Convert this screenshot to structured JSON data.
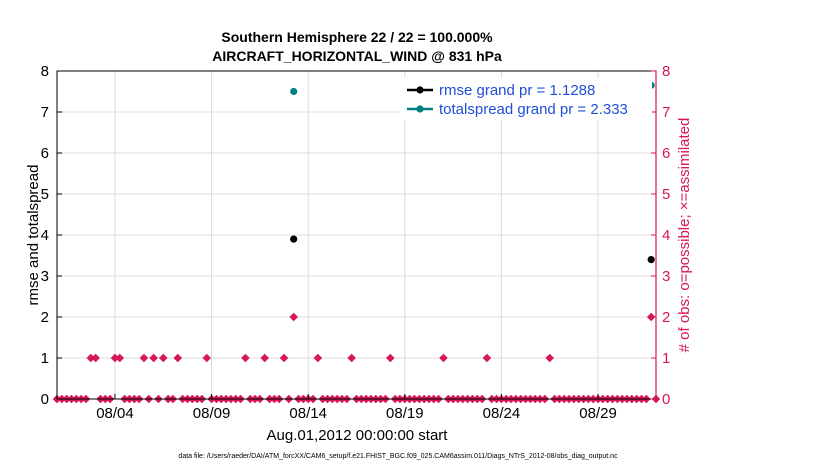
{
  "chart_data": {
    "type": "scatter",
    "title_line1": "Southern Hemisphere 22 / 22 = 100.000%",
    "title_line2": "AIRCRAFT_HORIZONTAL_WIND @ 831 hPa",
    "ylabel_left": "rmse and totalspread",
    "ylabel_right": "# of obs: o=possible; ×=assimilated",
    "xlabel": "Aug.01,2012 00:00:00 start",
    "footer": "data file: /Users/raeder/DAI/ATM_forcXX/CAM6_setup/f.e21.FHIST_BGC.f09_025.CAM6assim.011/Diags_NTrS_2012-08/obs_diag_output.nc",
    "x_range_days": [
      0,
      31
    ],
    "ylim_left": [
      0,
      8
    ],
    "ylim_right": [
      0,
      8
    ],
    "y_ticks": [
      "0",
      "1",
      "2",
      "3",
      "4",
      "5",
      "6",
      "7",
      "8"
    ],
    "x_ticks": [
      {
        "day": 3,
        "label": "08/04"
      },
      {
        "day": 8,
        "label": "08/09"
      },
      {
        "day": 13,
        "label": "08/14"
      },
      {
        "day": 18,
        "label": "08/19"
      },
      {
        "day": 23,
        "label": "08/24"
      },
      {
        "day": 28,
        "label": "08/29"
      }
    ],
    "grid": true,
    "legend_position": "top-right",
    "series": [
      {
        "name": "rmse grand pr = 1.1288",
        "color": "#000000",
        "points": [
          [
            12.25,
            3.9
          ],
          [
            30.75,
            3.4
          ]
        ]
      },
      {
        "name": "totalspread grand pr = 2.333",
        "color": "#008080",
        "points": [
          [
            12.25,
            7.5
          ],
          [
            30.75,
            7.65
          ]
        ]
      }
    ],
    "obs_counts": {
      "color": "#d6175b",
      "ones": [
        1.75,
        2.0,
        3.0,
        3.25,
        4.5,
        5.0,
        5.5,
        6.25,
        7.75,
        9.75,
        10.75,
        11.75,
        13.5,
        15.25,
        17.25,
        20.0,
        22.25,
        25.5
      ],
      "twos": [
        12.25,
        30.75
      ],
      "zero_step_days": 0.25
    }
  },
  "colors": {
    "left_axis": "#000000",
    "right_axis": "#d6175b",
    "grid": "#dcdcdc",
    "legend_text": "#1f4fd8"
  }
}
